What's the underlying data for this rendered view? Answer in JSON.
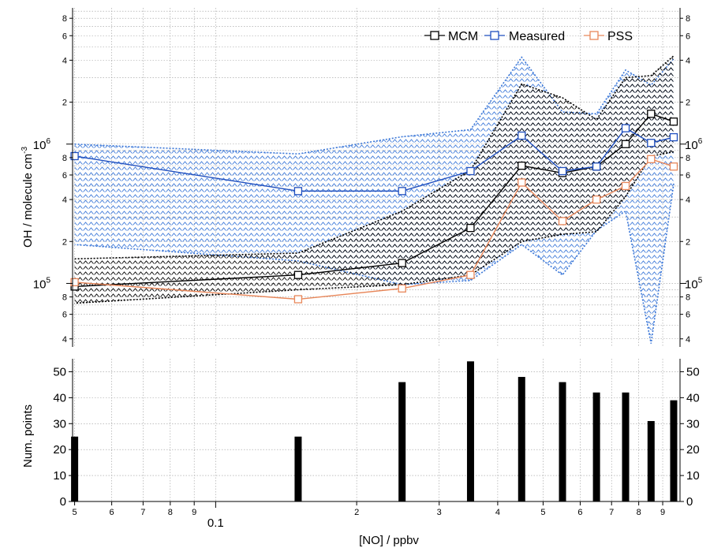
{
  "chart_data": [
    {
      "type": "line",
      "ylabel": "OH / molecule cm",
      "ylabel_exponent": "-3",
      "yscale": "log",
      "ylim": [
        35000,
        9500000
      ],
      "x": [
        0.05,
        0.15,
        0.25,
        0.35,
        0.45,
        0.55,
        0.65,
        0.75,
        0.85,
        0.95
      ],
      "series": [
        {
          "name": "MCM",
          "color": "#000000",
          "values": [
            95000,
            115000,
            140000,
            250000,
            700000,
            620000,
            690000,
            1000000,
            1650000,
            1450000
          ],
          "range_low": [
            72000,
            90000,
            98000,
            115000,
            200000,
            225000,
            235000,
            420000,
            820000,
            880000
          ],
          "range_high": [
            150000,
            165000,
            330000,
            650000,
            2700000,
            2150000,
            1500000,
            3000000,
            3100000,
            4300000
          ]
        },
        {
          "name": "Measured",
          "color": "#1f4fbf",
          "values": [
            820000,
            460000,
            460000,
            640000,
            1150000,
            640000,
            690000,
            1300000,
            1020000,
            1120000
          ],
          "range_low": [
            190000,
            145000,
            98000,
            105000,
            190000,
            115000,
            240000,
            330000,
            37000,
            520000
          ],
          "range_high": [
            1000000,
            850000,
            1130000,
            1270000,
            4200000,
            1700000,
            1650000,
            3400000,
            2650000,
            4100000
          ]
        },
        {
          "name": "PSS",
          "color": "#e8875a",
          "values": [
            102000,
            77000,
            92000,
            115000,
            530000,
            280000,
            400000,
            500000,
            780000,
            690000
          ]
        }
      ],
      "legend": {
        "position": "top-right",
        "entries": [
          "MCM",
          "Measured",
          "PSS"
        ]
      },
      "major_ticks": [
        "10",
        "10"
      ],
      "major_exponents": [
        "5",
        "6"
      ],
      "minor_tick_labels": [
        "4",
        "6",
        "8",
        "2",
        "4",
        "6",
        "8",
        "2",
        "4",
        "6",
        "8"
      ],
      "grid": true
    },
    {
      "type": "bar",
      "ylabel": "Num. points",
      "x": [
        0.05,
        0.15,
        0.25,
        0.35,
        0.45,
        0.55,
        0.65,
        0.75,
        0.85,
        0.95
      ],
      "values": [
        25,
        25,
        46,
        54,
        48,
        46,
        42,
        42,
        31,
        39
      ],
      "ylim": [
        0,
        55
      ],
      "yticks": [
        "0",
        "10",
        "20",
        "30",
        "40",
        "50"
      ],
      "xlabel": "[NO] / ppbv",
      "xscale": "log",
      "xlim": [
        0.0495,
        0.98
      ],
      "xtick_labels": [
        "5",
        "6",
        "7",
        "8",
        "9",
        "0.1",
        "2",
        "3",
        "4",
        "5",
        "6",
        "7",
        "8",
        "9"
      ],
      "color": "#000000",
      "grid": true
    }
  ]
}
